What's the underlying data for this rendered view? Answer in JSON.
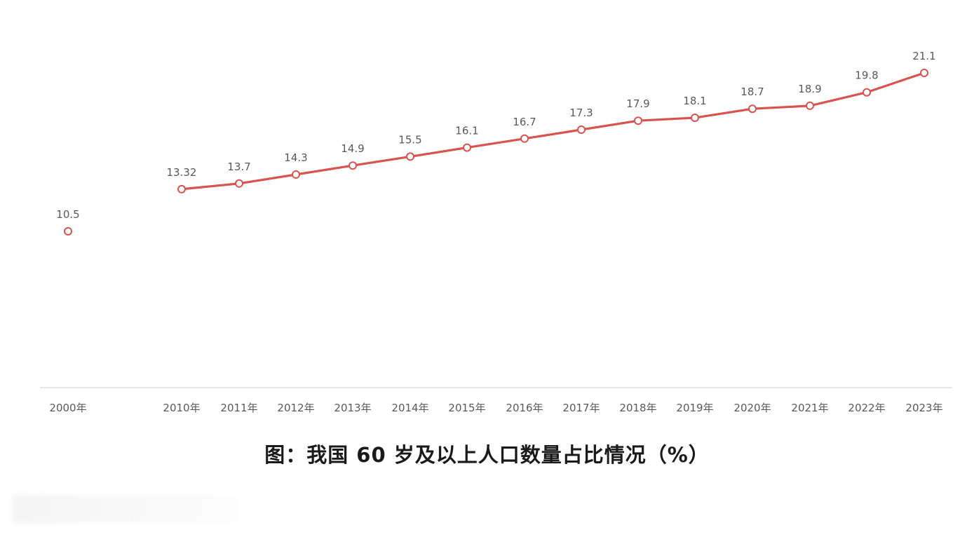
{
  "chart_data": {
    "type": "line",
    "categories": [
      "2000年",
      "2010年",
      "2011年",
      "2012年",
      "2013年",
      "2014年",
      "2015年",
      "2016年",
      "2017年",
      "2018年",
      "2019年",
      "2020年",
      "2021年",
      "2022年",
      "2023年"
    ],
    "values": [
      10.5,
      13.32,
      13.7,
      14.3,
      14.9,
      15.5,
      16.1,
      16.7,
      17.3,
      17.9,
      18.1,
      18.7,
      18.9,
      19.8,
      21.1
    ],
    "labels": [
      "10.5",
      "13.32",
      "13.7",
      "14.3",
      "14.9",
      "15.5",
      "16.1",
      "16.7",
      "17.3",
      "17.9",
      "18.1",
      "18.7",
      "18.9",
      "19.8",
      "21.1"
    ],
    "connected_from_index": 1,
    "ylim": [
      0,
      22
    ],
    "grid": false,
    "legend": "none",
    "colors": {
      "line": "#d9534f",
      "marker_fill": "#ffffff",
      "axis": "#d9d9d9",
      "text": "#595959"
    }
  },
  "caption": "图：我国 60 岁及以上人口数量占比情况（%）"
}
